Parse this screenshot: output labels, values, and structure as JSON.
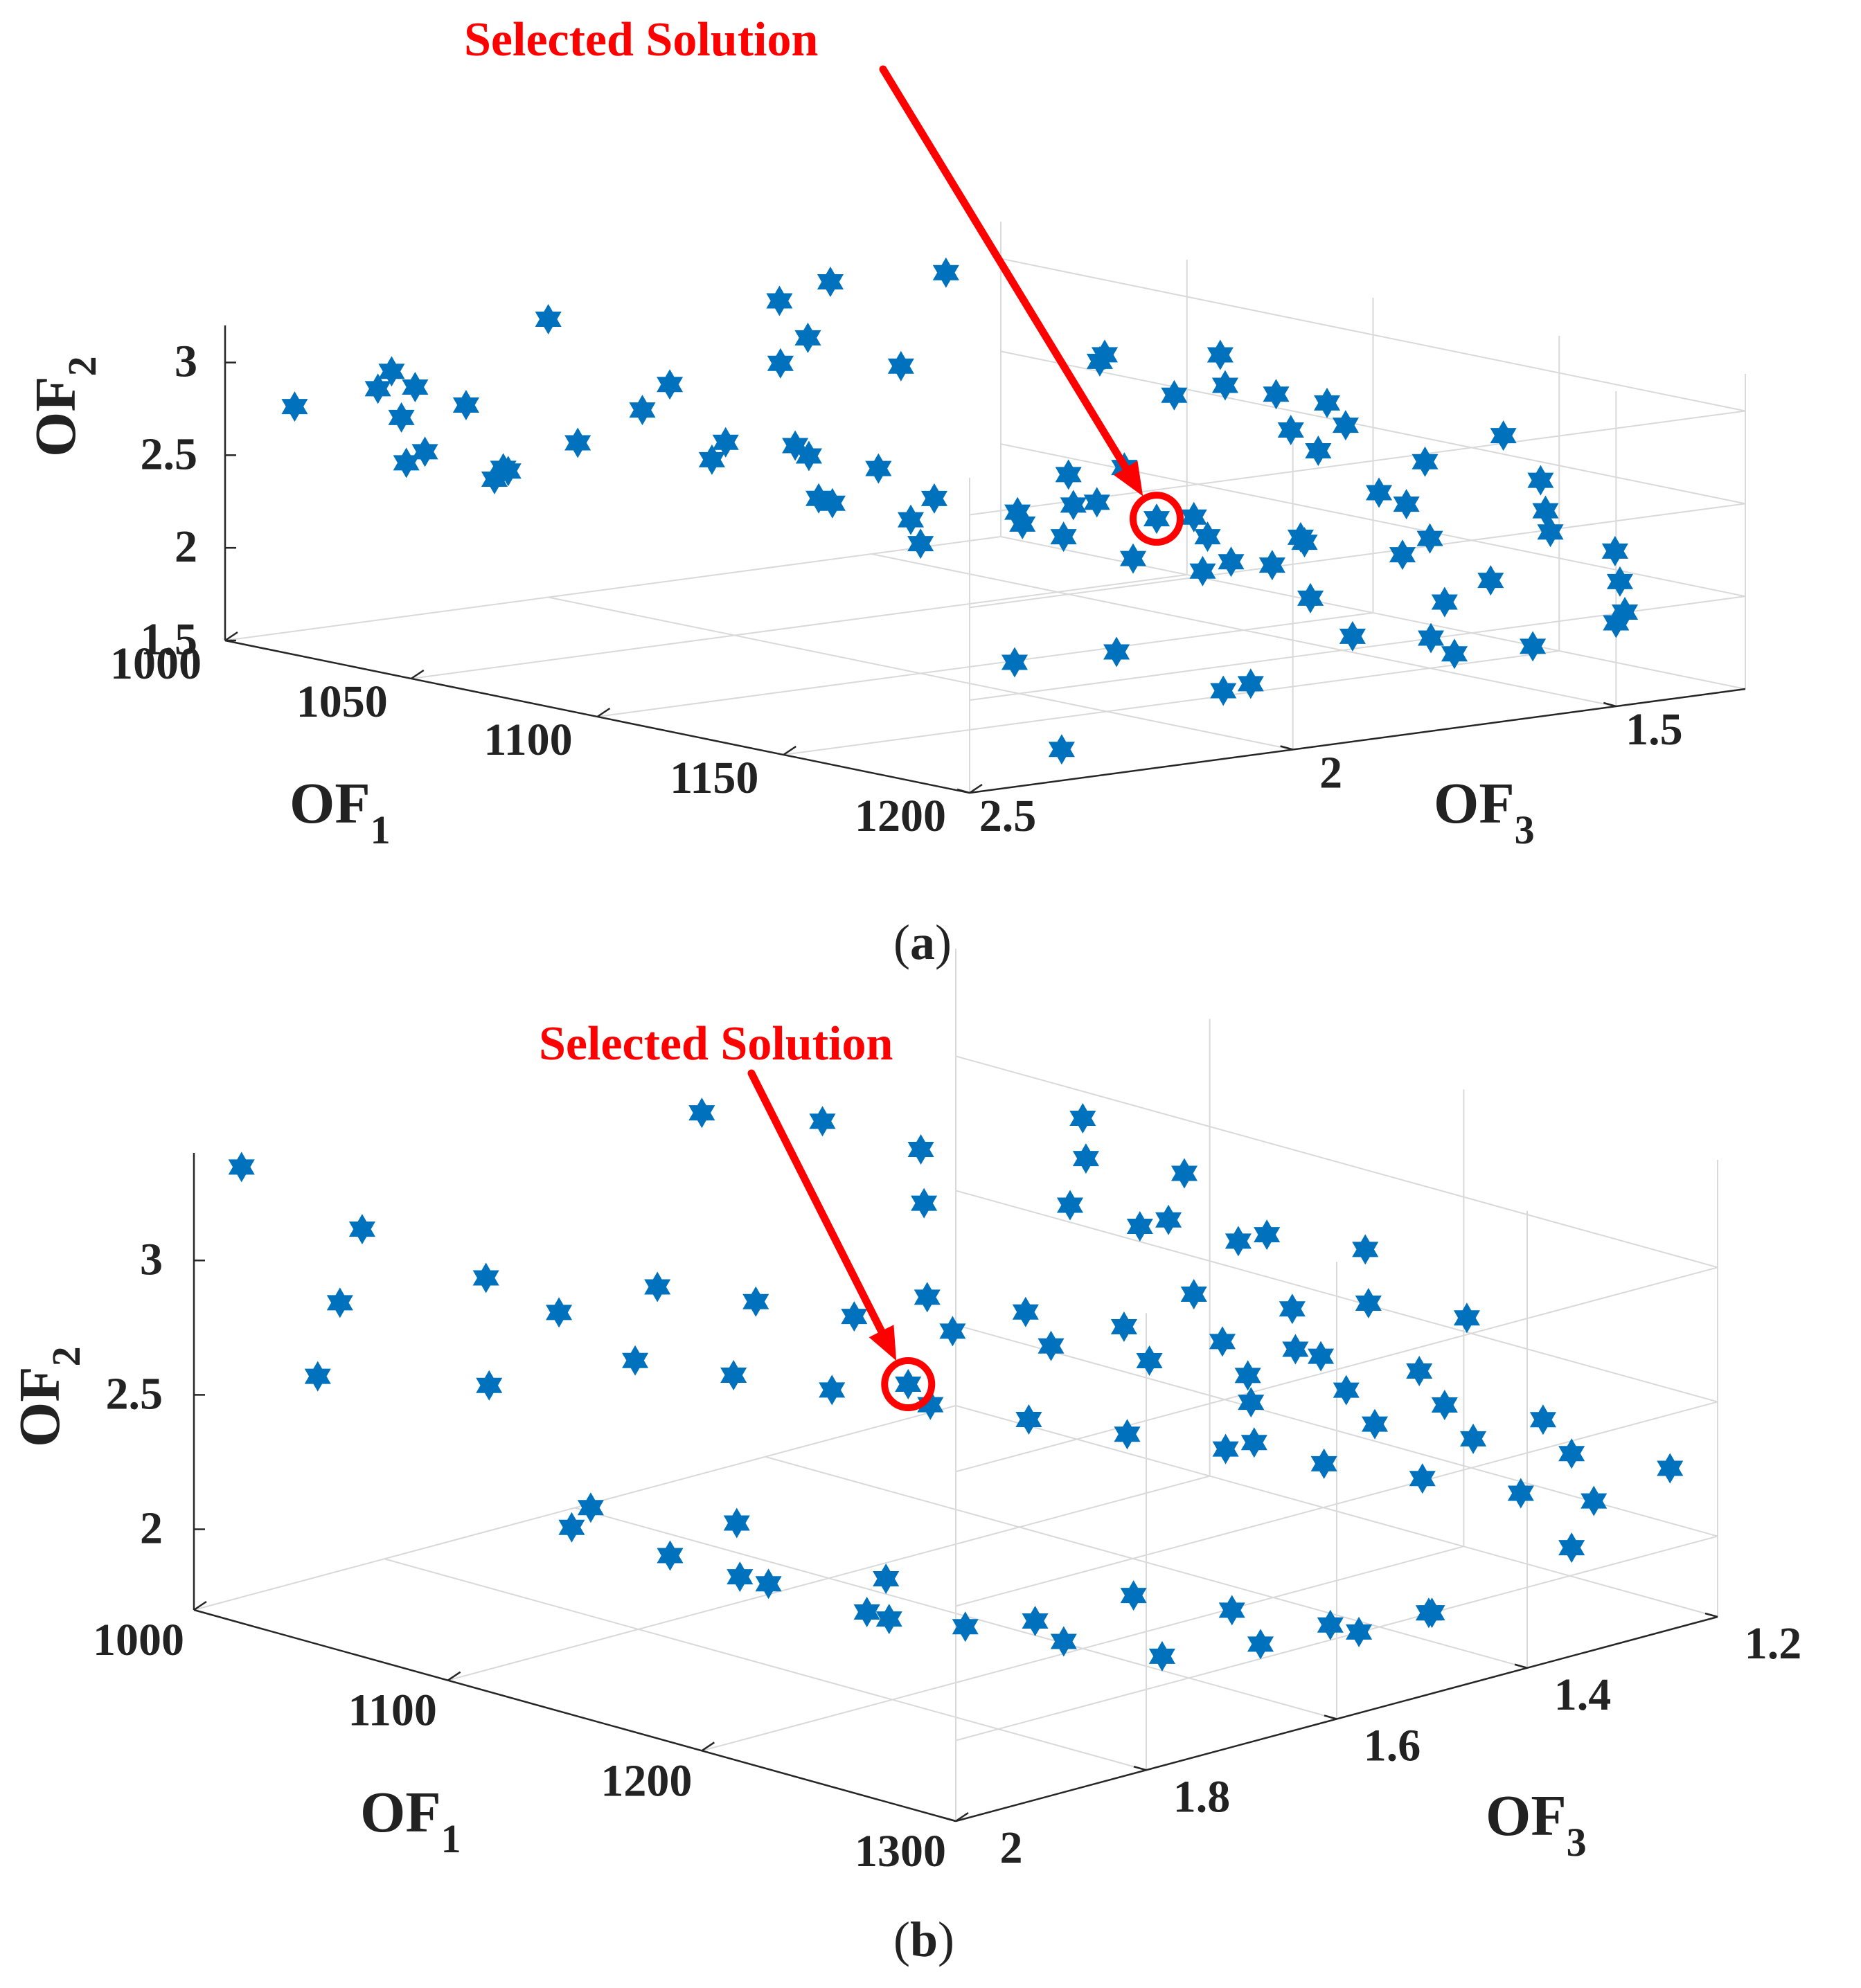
{
  "colors": {
    "marker": "#0072BD",
    "annotation": "#FF0000",
    "text": "#222222",
    "grid": "#D9D9D9"
  },
  "chart_data": [
    {
      "type": "scatter",
      "panel": "(a)",
      "marker": "hexagram",
      "xlabel": {
        "main": "OF",
        "sub": "1"
      },
      "ylabel": {
        "main": "OF",
        "sub": "3"
      },
      "zlabel": {
        "main": "OF",
        "sub": "2"
      },
      "xlim": [
        1000,
        1200
      ],
      "ylim": [
        1.3,
        2.5
      ],
      "zlim": [
        1.5,
        3.2
      ],
      "xticks": [
        "1000",
        "1050",
        "1100",
        "1150",
        "1200"
      ],
      "yticks": [
        "1.5",
        "2",
        "2.5"
      ],
      "zticks": [
        "1.5",
        "2",
        "2.5",
        "3"
      ],
      "xtickvals": [
        1000,
        1050,
        1100,
        1150,
        1200
      ],
      "ytickvals": [
        1.5,
        2.0,
        2.5
      ],
      "ztickvals": [
        1.5,
        2.0,
        2.5,
        3.0
      ],
      "annotation": "Selected Solution",
      "selected_point": [
        1120,
        1.75,
        2.3
      ],
      "points": [
        [
          1120,
          1.75,
          2.3
        ],
        [
          1010,
          2.45,
          2.78
        ],
        [
          1010,
          2.3,
          2.9
        ],
        [
          1015,
          2.35,
          2.85
        ],
        [
          1025,
          2.35,
          2.9
        ],
        [
          1030,
          2.4,
          2.78
        ],
        [
          1030,
          2.3,
          2.8
        ],
        [
          1040,
          2.45,
          2.6
        ],
        [
          1045,
          2.45,
          2.68
        ],
        [
          1040,
          2.3,
          2.5
        ],
        [
          1050,
          2.35,
          2.55
        ],
        [
          1055,
          2.4,
          2.55
        ],
        [
          1060,
          2.3,
          2.72
        ],
        [
          1050,
          2.1,
          2.9
        ],
        [
          1060,
          2.2,
          2.85
        ],
        [
          1065,
          2.1,
          2.65
        ],
        [
          1070,
          2.15,
          2.6
        ],
        [
          1075,
          2.05,
          2.65
        ],
        [
          1070,
          2.0,
          2.55
        ],
        [
          1080,
          1.95,
          2.5
        ],
        [
          1085,
          2.05,
          2.38
        ],
        [
          1080,
          1.9,
          2.2
        ],
        [
          1090,
          2.1,
          2.45
        ],
        [
          1095,
          1.95,
          2.4
        ],
        [
          1100,
          1.85,
          2.3
        ],
        [
          1100,
          2.0,
          2.2
        ],
        [
          1105,
          1.8,
          2.5
        ],
        [
          1110,
          1.9,
          2.3
        ],
        [
          1115,
          1.85,
          2.4
        ],
        [
          1120,
          1.8,
          2.6
        ],
        [
          1125,
          1.7,
          2.2
        ],
        [
          1130,
          1.75,
          2.35
        ],
        [
          1125,
          1.6,
          2.0
        ],
        [
          1130,
          1.9,
          2.5
        ],
        [
          1000,
          2.0,
          3.0
        ],
        [
          1010,
          1.7,
          3.0
        ],
        [
          1015,
          1.65,
          3.1
        ],
        [
          1020,
          1.5,
          3.1
        ],
        [
          1035,
          1.8,
          2.95
        ],
        [
          1045,
          1.9,
          2.9
        ],
        [
          1060,
          1.8,
          2.9
        ],
        [
          1070,
          1.55,
          2.85
        ],
        [
          1080,
          1.6,
          2.95
        ],
        [
          1085,
          1.45,
          2.9
        ],
        [
          1090,
          1.55,
          2.75
        ],
        [
          1095,
          1.5,
          2.8
        ],
        [
          1100,
          1.45,
          2.75
        ],
        [
          1105,
          1.4,
          2.7
        ],
        [
          1110,
          1.4,
          2.6
        ],
        [
          1120,
          1.5,
          2.55
        ],
        [
          1130,
          1.6,
          2.75
        ],
        [
          1140,
          1.45,
          2.55
        ],
        [
          1135,
          1.3,
          2.6
        ],
        [
          1145,
          1.55,
          2.45
        ],
        [
          1150,
          1.7,
          2.3
        ],
        [
          1160,
          1.6,
          2.2
        ],
        [
          1140,
          1.75,
          2.15
        ],
        [
          1150,
          1.5,
          2.2
        ],
        [
          1165,
          1.4,
          2.25
        ],
        [
          1175,
          1.55,
          2.1
        ],
        [
          1180,
          1.65,
          2.05
        ],
        [
          1170,
          1.8,
          2.1
        ],
        [
          1185,
          1.7,
          1.9
        ],
        [
          1190,
          1.85,
          2.0
        ],
        [
          1195,
          1.6,
          1.85
        ],
        [
          1200,
          1.75,
          1.9
        ],
        [
          1180,
          1.95,
          1.75
        ],
        [
          1190,
          2.05,
          1.8
        ],
        [
          1170,
          2.1,
          1.95
        ],
        [
          1160,
          2.2,
          1.9
        ],
        [
          1190,
          2.3,
          1.6
        ],
        [
          1200,
          1.5,
          1.95
        ],
        [
          1185,
          1.4,
          1.9
        ],
        [
          1175,
          1.35,
          2.0
        ],
        [
          1165,
          1.3,
          2.1
        ],
        [
          1155,
          1.35,
          2.3
        ],
        [
          1145,
          1.3,
          2.4
        ],
        [
          1135,
          1.45,
          2.3
        ],
        [
          1125,
          1.55,
          2.1
        ],
        [
          1115,
          1.65,
          1.95
        ],
        [
          1105,
          1.7,
          2.0
        ],
        [
          1095,
          1.75,
          2.1
        ]
      ]
    },
    {
      "type": "scatter",
      "panel": "(b)",
      "marker": "hexagram",
      "xlabel": {
        "main": "OF",
        "sub": "1"
      },
      "ylabel": {
        "main": "OF",
        "sub": "3"
      },
      "zlabel": {
        "main": "OF",
        "sub": "2"
      },
      "xlim": [
        1000,
        1300
      ],
      "ylim": [
        1.2,
        2.0
      ],
      "zlim": [
        1.7,
        3.4
      ],
      "xticks": [
        "1000",
        "1100",
        "1200",
        "1300"
      ],
      "yticks": [
        "1.2",
        "1.4",
        "1.6",
        "1.8",
        "2"
      ],
      "zticks": [
        "2",
        "2.5",
        "3"
      ],
      "xtickvals": [
        1000,
        1100,
        1200,
        1300
      ],
      "ytickvals": [
        1.2,
        1.4,
        1.6,
        1.8,
        2.0
      ],
      "ztickvals": [
        2.0,
        2.5,
        3.0
      ],
      "annotation": "Selected Solution",
      "selected_point": [
        1150,
        1.65,
        2.6
      ],
      "points": [
        [
          1150,
          1.65,
          2.6
        ],
        [
          1000,
          1.95,
          3.3
        ],
        [
          1010,
          1.85,
          3.0
        ],
        [
          1020,
          1.9,
          2.8
        ],
        [
          1030,
          1.95,
          2.6
        ],
        [
          1040,
          1.8,
          2.85
        ],
        [
          1050,
          1.75,
          2.7
        ],
        [
          1060,
          1.85,
          2.55
        ],
        [
          1070,
          1.7,
          2.8
        ],
        [
          1080,
          1.75,
          2.6
        ],
        [
          1090,
          1.65,
          2.75
        ],
        [
          1100,
          1.7,
          2.55
        ],
        [
          1110,
          1.6,
          2.7
        ],
        [
          1120,
          1.65,
          2.5
        ],
        [
          1130,
          1.55,
          2.65
        ],
        [
          1140,
          1.6,
          2.45
        ],
        [
          1150,
          1.5,
          2.6
        ],
        [
          1160,
          1.55,
          2.4
        ],
        [
          1170,
          1.45,
          2.55
        ],
        [
          1180,
          1.5,
          2.35
        ],
        [
          1190,
          1.4,
          2.5
        ],
        [
          1200,
          1.45,
          2.3
        ],
        [
          1210,
          1.35,
          2.45
        ],
        [
          1220,
          1.4,
          2.25
        ],
        [
          1230,
          1.3,
          2.4
        ],
        [
          1240,
          1.35,
          2.2
        ],
        [
          1250,
          1.25,
          2.35
        ],
        [
          1260,
          1.3,
          2.15
        ],
        [
          1270,
          1.25,
          2.1
        ],
        [
          1280,
          1.3,
          2.0
        ],
        [
          1050,
          1.6,
          3.3
        ],
        [
          1060,
          1.5,
          3.2
        ],
        [
          1080,
          1.45,
          3.1
        ],
        [
          1100,
          1.5,
          3.0
        ],
        [
          1120,
          1.4,
          2.95
        ],
        [
          1140,
          1.35,
          2.9
        ],
        [
          1160,
          1.3,
          2.85
        ],
        [
          1180,
          1.25,
          2.8
        ],
        [
          1200,
          1.3,
          2.7
        ],
        [
          1220,
          1.25,
          2.65
        ],
        [
          1100,
          1.85,
          2.2
        ],
        [
          1120,
          1.75,
          2.1
        ],
        [
          1140,
          1.8,
          2.0
        ],
        [
          1160,
          1.7,
          1.95
        ],
        [
          1180,
          1.75,
          1.9
        ],
        [
          1200,
          1.65,
          1.85
        ],
        [
          1220,
          1.6,
          1.95
        ],
        [
          1240,
          1.55,
          1.9
        ],
        [
          1260,
          1.5,
          1.85
        ],
        [
          1280,
          1.45,
          1.9
        ],
        [
          1130,
          1.95,
          2.3
        ],
        [
          1150,
          1.9,
          2.2
        ],
        [
          1170,
          1.85,
          2.1
        ],
        [
          1190,
          1.8,
          2.0
        ],
        [
          1210,
          1.75,
          1.95
        ],
        [
          1230,
          1.7,
          1.9
        ],
        [
          1250,
          1.65,
          1.85
        ],
        [
          1270,
          1.6,
          1.9
        ],
        [
          1290,
          1.55,
          1.95
        ],
        [
          1300,
          1.5,
          2.0
        ],
        [
          1120,
          1.55,
          2.75
        ],
        [
          1140,
          1.5,
          2.7
        ],
        [
          1160,
          1.45,
          2.65
        ],
        [
          1180,
          1.4,
          2.6
        ],
        [
          1200,
          1.35,
          2.55
        ],
        [
          1220,
          1.3,
          2.5
        ],
        [
          1240,
          1.4,
          2.45
        ],
        [
          1260,
          1.35,
          2.4
        ],
        [
          1280,
          1.3,
          2.35
        ],
        [
          1300,
          1.25,
          2.3
        ],
        [
          1050,
          1.2,
          2.9
        ],
        [
          1070,
          1.25,
          2.85
        ],
        [
          1090,
          1.2,
          2.8
        ],
        [
          1110,
          1.3,
          2.75
        ],
        [
          1130,
          1.25,
          2.7
        ],
        [
          1150,
          1.35,
          2.65
        ],
        [
          1170,
          1.3,
          2.6
        ],
        [
          1190,
          1.35,
          2.55
        ],
        [
          1210,
          1.45,
          2.5
        ],
        [
          1230,
          1.5,
          2.45
        ]
      ]
    }
  ],
  "panels": [
    {
      "caption": "(a)",
      "annotation": "Selected Solution"
    },
    {
      "caption": "(b)",
      "annotation": "Selected Solution"
    }
  ]
}
